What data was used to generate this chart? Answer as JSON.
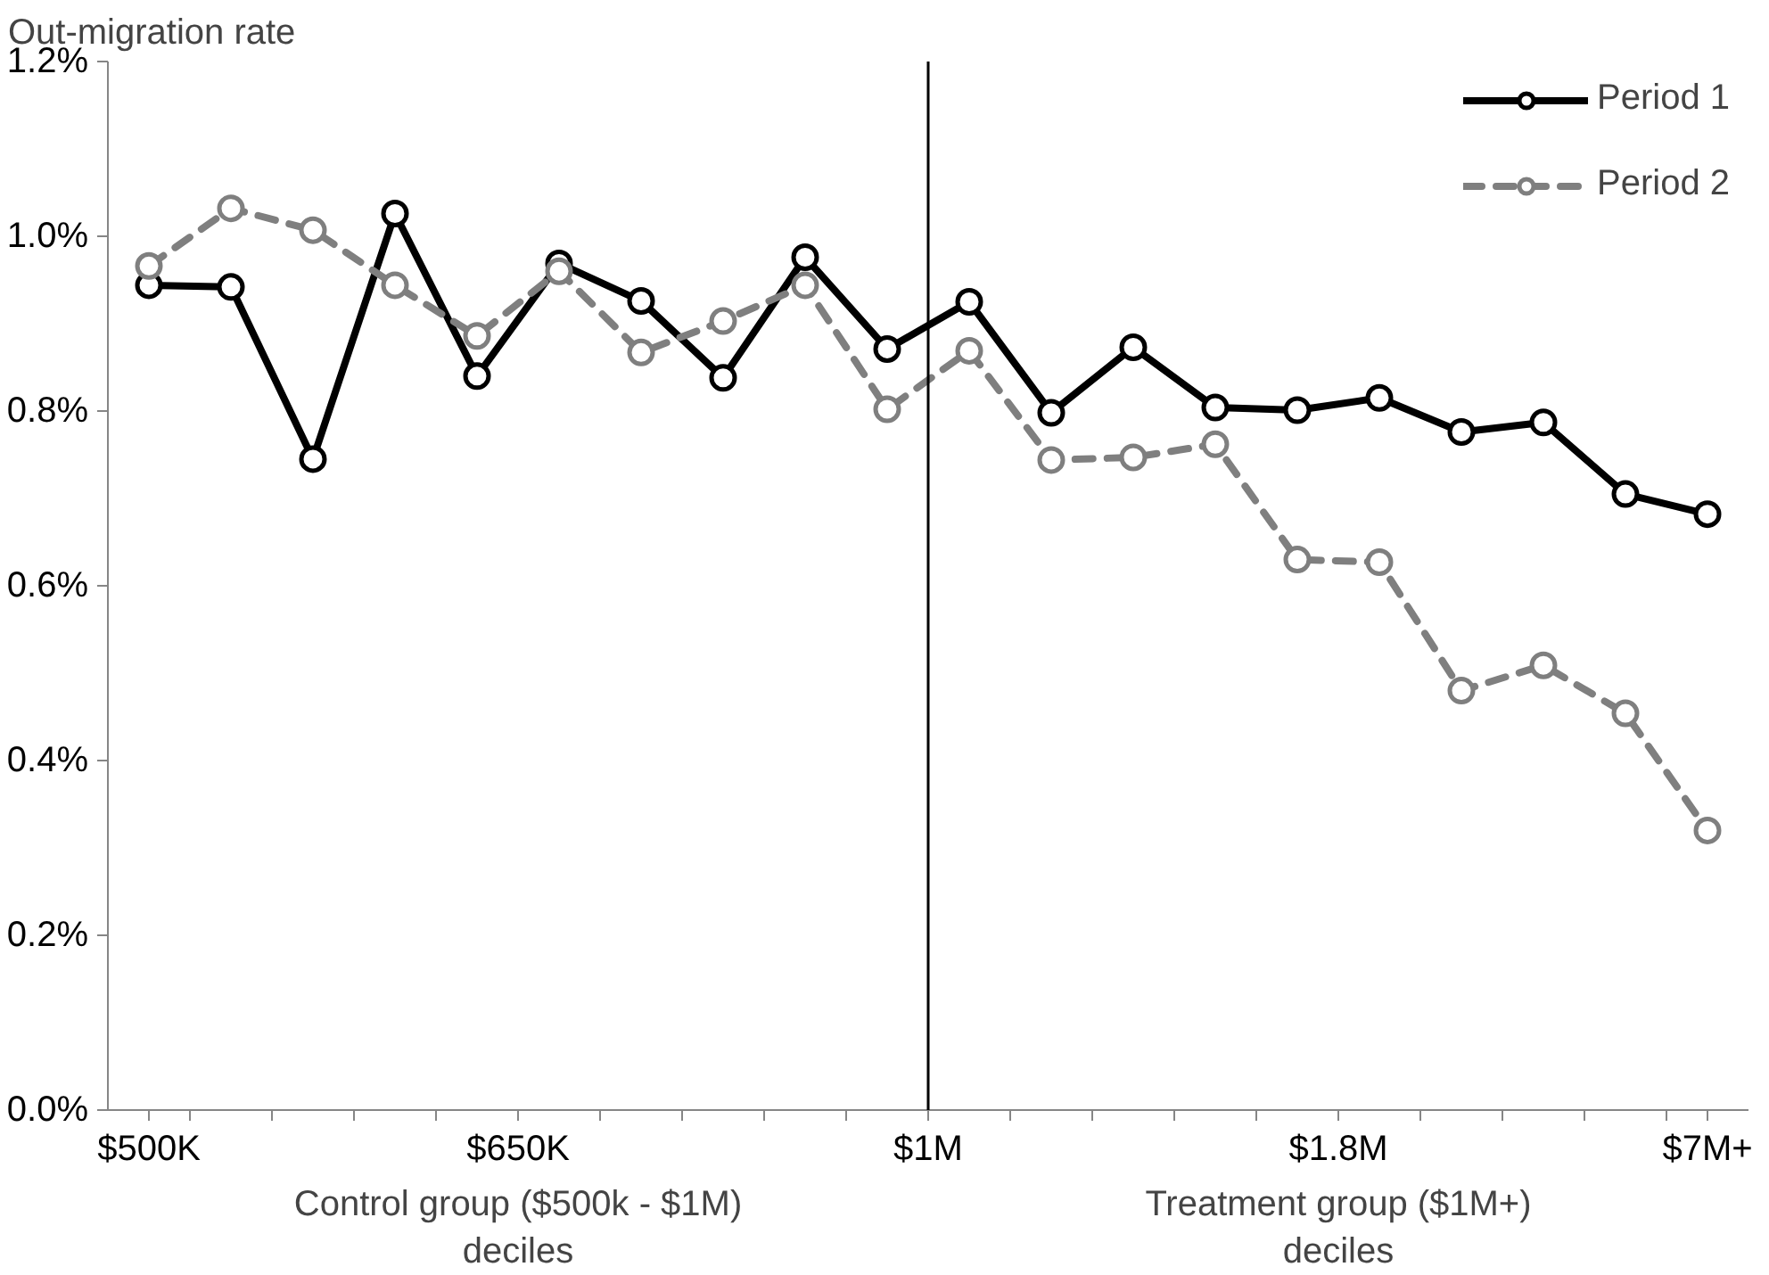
{
  "chart_data": {
    "type": "line",
    "ylabel": "Out-migration rate",
    "categories": [
      "$500K",
      null,
      null,
      null,
      null,
      null,
      null,
      null,
      null,
      null,
      null,
      null,
      null,
      null,
      null,
      null,
      null,
      null,
      null,
      "$7M+"
    ],
    "ylim": [
      0,
      1.2
    ],
    "yticks": [
      {
        "value": 0,
        "label": "0.0%"
      },
      {
        "value": 0.2,
        "label": "0.2%"
      },
      {
        "value": 0.4,
        "label": "0.4%"
      },
      {
        "value": 0.6,
        "label": "0.6%"
      },
      {
        "value": 0.8,
        "label": "0.8%"
      },
      {
        "value": 1.0,
        "label": "1.0%"
      },
      {
        "value": 1.2,
        "label": "1.2%"
      }
    ],
    "series": [
      {
        "name": "Period 1",
        "color": "#000000",
        "line_style": "solid",
        "values": [
          0.944,
          0.942,
          0.745,
          1.026,
          0.84,
          0.969,
          0.926,
          0.838,
          0.976,
          0.871,
          0.925,
          0.798,
          0.873,
          0.804,
          0.801,
          0.815,
          0.776,
          0.787,
          0.705,
          0.682
        ]
      },
      {
        "name": "Period 2",
        "color": "#7f7f7f",
        "line_style": "dashed",
        "values": [
          0.966,
          1.032,
          1.007,
          0.944,
          0.886,
          0.96,
          0.867,
          0.903,
          0.944,
          0.802,
          0.869,
          0.744,
          0.747,
          0.762,
          0.63,
          0.627,
          0.48,
          0.509,
          0.454,
          0.32
        ]
      }
    ],
    "ref_lines": [
      {
        "axis": "x",
        "color": "#000000"
      }
    ],
    "annotations": [
      "$650K",
      "$1M",
      "$1.8M",
      "Control group ($500k - $1M)\ndeciles",
      "Treatment group ($1M+)\ndeciles"
    ],
    "marker": "circle",
    "legend": "top right"
  }
}
